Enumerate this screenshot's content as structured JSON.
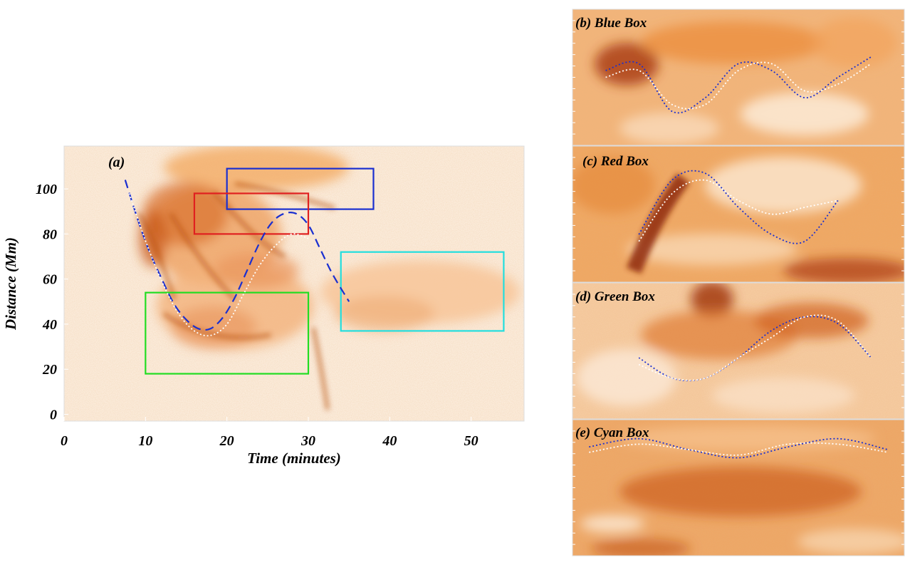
{
  "chart_data": [
    {
      "panel": "(a)",
      "type": "heatmap",
      "xlabel": "Time (minutes)",
      "ylabel": "Distance (Mm)",
      "xlim": [
        0,
        56.5
      ],
      "ylim": [
        -3,
        119
      ],
      "xticks": [
        0,
        10,
        20,
        30,
        40,
        50
      ],
      "yticks": [
        0,
        20,
        40,
        60,
        80,
        100
      ],
      "colormap": [
        "#fdf2e6",
        "#f5b870",
        "#e9801f",
        "#c5540e",
        "#8f2a08"
      ],
      "curves": [
        {
          "style": "dashed",
          "color": "#1a2fd0",
          "x": [
            7.5,
            9,
            10.5,
            12,
            13.5,
            15,
            16.5,
            18,
            19.5,
            21,
            22.5,
            24,
            25.5,
            27,
            28.5,
            30,
            31.5,
            33,
            35
          ],
          "y": [
            104,
            87,
            72,
            60,
            49,
            42,
            38,
            38,
            43,
            52,
            64,
            76,
            85,
            89,
            89,
            84,
            73,
            62,
            50
          ]
        },
        {
          "style": "dotted",
          "color": "#ffffff",
          "x": [
            8,
            10,
            12,
            14,
            16,
            18,
            20,
            22,
            24,
            26,
            28,
            30
          ],
          "y": [
            98,
            77,
            59,
            45,
            37,
            35,
            40,
            53,
            66,
            75,
            80,
            78
          ]
        }
      ],
      "boxes": [
        {
          "name": "Blue Box",
          "color": "#1a2fd0",
          "x": [
            20,
            38
          ],
          "y": [
            91,
            109
          ]
        },
        {
          "name": "Red Box",
          "color": "#e02020",
          "x": [
            16,
            30
          ],
          "y": [
            80,
            98
          ]
        },
        {
          "name": "Green Box",
          "color": "#22dd22",
          "x": [
            10,
            30
          ],
          "y": [
            18,
            54
          ]
        },
        {
          "name": "Cyan Box",
          "color": "#22dede",
          "x": [
            34,
            54
          ],
          "y": [
            37,
            72
          ]
        }
      ]
    },
    {
      "panel": "(b)",
      "label": "Blue Box",
      "type": "heatmap",
      "curves": [
        {
          "style": "dotted",
          "color": "#1a2fd0",
          "x": [
            0.1,
            0.2,
            0.3,
            0.4,
            0.5,
            0.6,
            0.7,
            0.8,
            0.9
          ],
          "y": [
            0.55,
            0.6,
            0.25,
            0.35,
            0.6,
            0.55,
            0.35,
            0.5,
            0.65
          ]
        },
        {
          "style": "dotted",
          "color": "#ffffff",
          "x": [
            0.1,
            0.2,
            0.3,
            0.4,
            0.5,
            0.6,
            0.7,
            0.8,
            0.9
          ],
          "y": [
            0.5,
            0.55,
            0.3,
            0.3,
            0.55,
            0.6,
            0.4,
            0.45,
            0.6
          ]
        }
      ]
    },
    {
      "panel": "(c)",
      "label": "Red Box",
      "type": "heatmap",
      "curves": [
        {
          "style": "dotted",
          "color": "#1a2fd0",
          "x": [
            0.2,
            0.3,
            0.4,
            0.5,
            0.6,
            0.7,
            0.8
          ],
          "y": [
            0.35,
            0.75,
            0.8,
            0.55,
            0.35,
            0.3,
            0.6
          ]
        },
        {
          "style": "dotted",
          "color": "#ffffff",
          "x": [
            0.2,
            0.3,
            0.4,
            0.5,
            0.6,
            0.7,
            0.8
          ],
          "y": [
            0.3,
            0.65,
            0.75,
            0.6,
            0.5,
            0.55,
            0.6
          ]
        }
      ]
    },
    {
      "panel": "(d)",
      "label": "Green Box",
      "type": "heatmap",
      "curves": [
        {
          "style": "dotted",
          "color": "#1a2fd0",
          "x": [
            0.2,
            0.3,
            0.4,
            0.5,
            0.6,
            0.7,
            0.8,
            0.9
          ],
          "y": [
            0.45,
            0.3,
            0.3,
            0.45,
            0.65,
            0.75,
            0.7,
            0.45
          ]
        },
        {
          "style": "dotted",
          "color": "#ffffff",
          "x": [
            0.2,
            0.3,
            0.4,
            0.5,
            0.6,
            0.7,
            0.8,
            0.9
          ],
          "y": [
            0.4,
            0.3,
            0.3,
            0.45,
            0.6,
            0.75,
            0.72,
            0.45
          ]
        }
      ]
    },
    {
      "panel": "(e)",
      "label": "Cyan Box",
      "type": "heatmap",
      "curves": [
        {
          "style": "dotted",
          "color": "#1a2fd0",
          "x": [
            0.05,
            0.2,
            0.35,
            0.5,
            0.65,
            0.8,
            0.95
          ],
          "y": [
            0.8,
            0.86,
            0.78,
            0.72,
            0.8,
            0.86,
            0.78
          ]
        },
        {
          "style": "dotted",
          "color": "#ffffff",
          "x": [
            0.05,
            0.2,
            0.35,
            0.5,
            0.65,
            0.8,
            0.95
          ],
          "y": [
            0.76,
            0.82,
            0.78,
            0.74,
            0.82,
            0.82,
            0.76
          ]
        }
      ]
    }
  ]
}
